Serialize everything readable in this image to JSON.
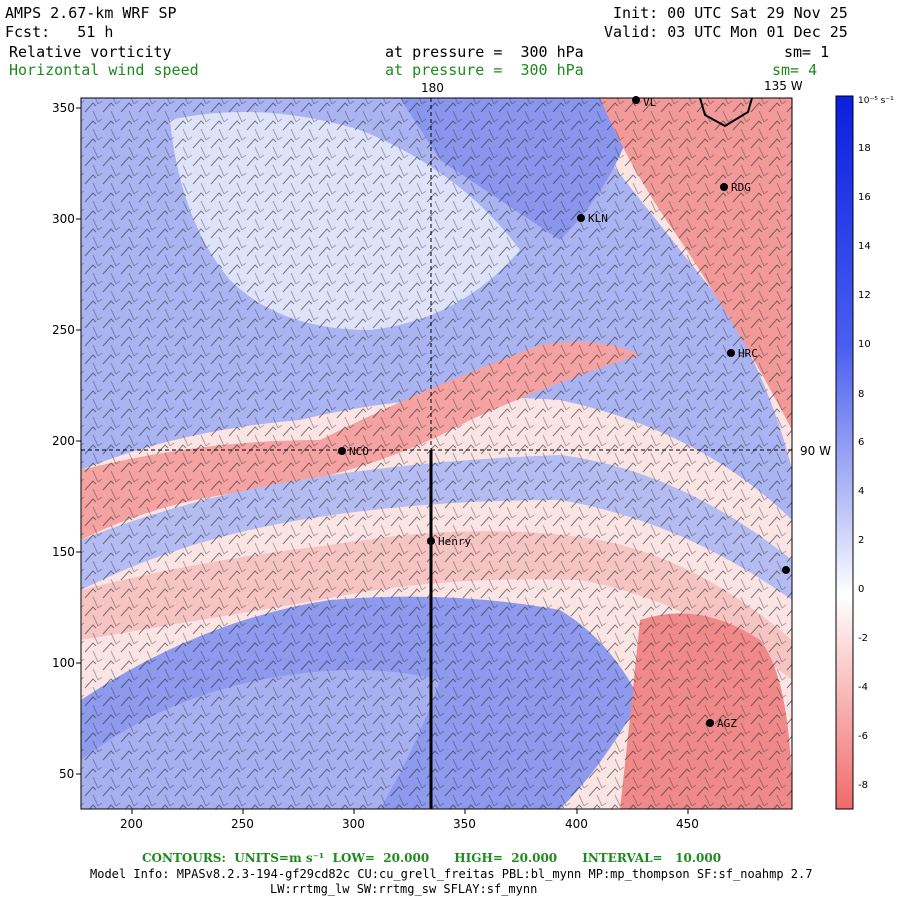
{
  "header": {
    "model": "AMPS 2.67-km WRF SP",
    "init": "Init: 00 UTC Sat 29 Nov 25",
    "fcst": "Fcst:   51 h",
    "valid": "Valid: 03 UTC Mon 01 Dec 25",
    "field1": {
      "name": "Relative vorticity",
      "level": "at pressure =  300 hPa",
      "sm": "sm= 1"
    },
    "field2": {
      "name": "Horizontal wind speed",
      "level": "at pressure =  300 hPa",
      "sm": "sm= 4"
    }
  },
  "map": {
    "x_ticks": [
      "200",
      "250",
      "300",
      "350",
      "400",
      "450"
    ],
    "y_ticks": [
      "350",
      "300",
      "250",
      "200",
      "150",
      "100",
      "50"
    ],
    "meridian_labels": {
      "top": "180",
      "top_right": "135 W",
      "right": "90 W"
    },
    "stations": [
      {
        "name": "NCO"
      },
      {
        "name": "Henry"
      },
      {
        "name": "KLN"
      },
      {
        "name": "RDG"
      },
      {
        "name": "HRC"
      },
      {
        "name": "AGZ"
      },
      {
        "name": "VL"
      }
    ],
    "colors": {
      "positive": "#2a3ff0",
      "negative": "#f07070",
      "neutral": "#ffffff",
      "cross_section": "#000000"
    }
  },
  "colorbar": {
    "unit": "10⁻⁵ s⁻¹",
    "labels": [
      "18",
      "16",
      "14",
      "12",
      "10",
      "8",
      "6",
      "4",
      "2",
      "0",
      "-2",
      "-4",
      "-6",
      "-8"
    ]
  },
  "footer": {
    "contours": "CONTOURS:  UNITS=m s⁻¹  LOW=  20.000      HIGH=  20.000      INTERVAL=   10.000",
    "model_info": "Model Info: MPASv8.2.3-194-gf29cd82c CU:cu_grell_freitas PBL:bl_mynn MP:mp_thompson SF:sf_noahmp 2.7",
    "model_info2": "LW:rrtmg_lw SW:rrtmg_sw SFLAY:sf_mynn"
  }
}
